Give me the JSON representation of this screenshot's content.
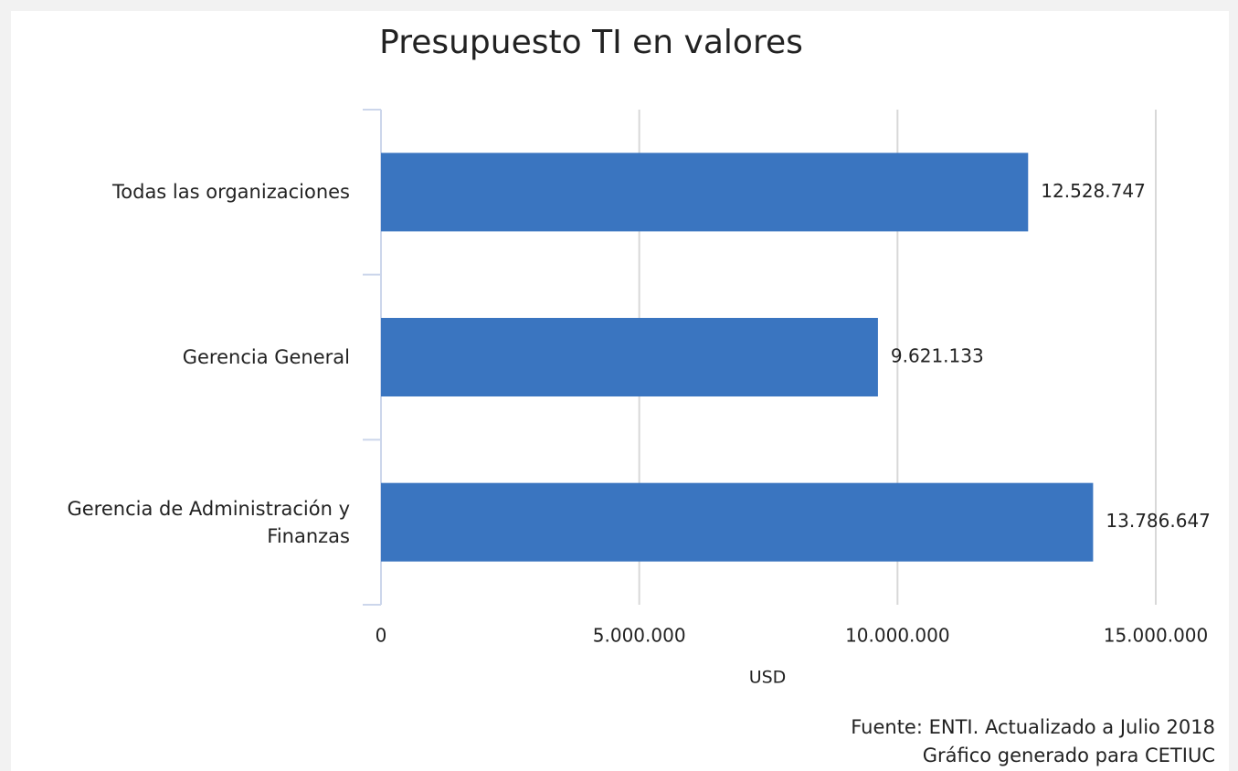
{
  "chart_data": {
    "type": "bar",
    "orientation": "horizontal",
    "title": "Presupuesto TI en valores",
    "categories": [
      "Todas las organizaciones",
      "Gerencia General",
      "Gerencia de Administración y Finanzas"
    ],
    "values": [
      12528747,
      9621133,
      13786647
    ],
    "value_labels": [
      "12.528.747",
      "9.621.133",
      "13.786.647"
    ],
    "color": "#3a75c0",
    "xlabel": "USD",
    "xlim": [
      0,
      15000000
    ],
    "xticks": [
      0,
      {
        "value": 5000000,
        "label": "5.000.000"
      },
      {
        "value": 10000000,
        "label": "10.000.000"
      },
      {
        "value": 15000000,
        "label": "15.000.000"
      }
    ],
    "grid": true,
    "source": [
      "Fuente: ENTI. Actualizado a Julio 2018",
      "Gráfico generado para CETIUC"
    ]
  }
}
